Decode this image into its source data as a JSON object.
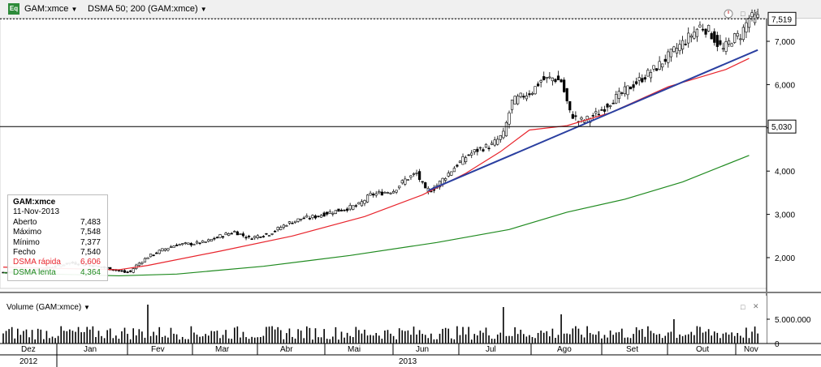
{
  "header": {
    "badge": "Eq",
    "symbol": "GAM:xmce",
    "indicator": "DSMA 50; 200 (GAM:xmce)"
  },
  "price_labels": {
    "current": "7,519",
    "hline": "5,030"
  },
  "info_box": {
    "title": "GAM:xmce",
    "date": "11-Nov-2013",
    "rows": [
      {
        "label": "Aberto",
        "value": "7,483"
      },
      {
        "label": "Máximo",
        "value": "7,548"
      },
      {
        "label": "Mínimo",
        "value": "7,377"
      },
      {
        "label": "Fecho",
        "value": "7,540"
      },
      {
        "label": "DSMA rápida",
        "value": "6,606"
      },
      {
        "label": "DSMA lenta",
        "value": "4,364"
      }
    ]
  },
  "volume_panel": {
    "title": "Volume (GAM:xmce)"
  },
  "colors": {
    "up": "#ffffff",
    "down": "#000000",
    "fast_ma": "#e8242c",
    "slow_ma": "#1f8a1f",
    "trendline": "#2a3fa0"
  },
  "chart_data": [
    {
      "type": "candlestick",
      "title": "",
      "ylim": [
        1.35,
        7.55
      ],
      "yticks": [
        "2,000",
        "3,000",
        "4,000",
        "5,000",
        "6,000",
        "7,000"
      ],
      "ytick_values": [
        2,
        3,
        4,
        5,
        6,
        7
      ],
      "x_month_labels": [
        "Dez",
        "Jan",
        "Fev",
        "Mar",
        "Abr",
        "Mai",
        "Jun",
        "Jul",
        "Ago",
        "Set",
        "Out",
        "Nov"
      ],
      "x_year_labels": [
        "2012",
        "2013"
      ],
      "close_series": [
        [
          0,
          1.66
        ],
        [
          6,
          1.68
        ],
        [
          12,
          1.72
        ],
        [
          18,
          1.8
        ],
        [
          23,
          1.88
        ],
        [
          28,
          1.85
        ],
        [
          34,
          1.78
        ],
        [
          40,
          1.7
        ],
        [
          42,
          1.66
        ],
        [
          44,
          1.68
        ],
        [
          46,
          1.82
        ],
        [
          50,
          2.02
        ],
        [
          55,
          2.18
        ],
        [
          60,
          2.3
        ],
        [
          65,
          2.32
        ],
        [
          70,
          2.36
        ],
        [
          75,
          2.5
        ],
        [
          80,
          2.6
        ],
        [
          85,
          2.45
        ],
        [
          88,
          2.5
        ],
        [
          92,
          2.55
        ],
        [
          98,
          2.78
        ],
        [
          103,
          2.9
        ],
        [
          108,
          2.95
        ],
        [
          113,
          3.05
        ],
        [
          118,
          3.12
        ],
        [
          123,
          3.22
        ],
        [
          127,
          3.45
        ],
        [
          131,
          3.5
        ],
        [
          135,
          3.55
        ],
        [
          139,
          3.8
        ],
        [
          143,
          3.95
        ],
        [
          146,
          3.55
        ],
        [
          149,
          3.6
        ],
        [
          153,
          3.88
        ],
        [
          157,
          4.15
        ],
        [
          161,
          4.38
        ],
        [
          165,
          4.52
        ],
        [
          169,
          4.6
        ],
        [
          173,
          4.85
        ],
        [
          176,
          5.6
        ],
        [
          180,
          5.75
        ],
        [
          183,
          5.85
        ],
        [
          186,
          6.1
        ],
        [
          190,
          6.15
        ],
        [
          193,
          6.08
        ],
        [
          196,
          5.35
        ],
        [
          199,
          5.15
        ],
        [
          202,
          5.2
        ],
        [
          206,
          5.35
        ],
        [
          210,
          5.6
        ],
        [
          214,
          5.8
        ],
        [
          218,
          6.0
        ],
        [
          222,
          6.2
        ],
        [
          226,
          6.4
        ],
        [
          230,
          6.65
        ],
        [
          234,
          6.9
        ],
        [
          238,
          7.15
        ],
        [
          241,
          7.35
        ],
        [
          244,
          7.25
        ],
        [
          247,
          6.95
        ],
        [
          249,
          6.8
        ],
        [
          252,
          7.05
        ],
        [
          255,
          7.15
        ],
        [
          258,
          7.54
        ]
      ],
      "dsma_rapida": [
        [
          0,
          1.78
        ],
        [
          40,
          1.72
        ],
        [
          50,
          1.82
        ],
        [
          75,
          2.15
        ],
        [
          100,
          2.5
        ],
        [
          125,
          2.95
        ],
        [
          145,
          3.45
        ],
        [
          160,
          3.95
        ],
        [
          172,
          4.45
        ],
        [
          182,
          4.95
        ],
        [
          195,
          5.05
        ],
        [
          210,
          5.35
        ],
        [
          230,
          5.95
        ],
        [
          250,
          6.35
        ],
        [
          258,
          6.606
        ]
      ],
      "dsma_lenta": [
        [
          0,
          1.65
        ],
        [
          40,
          1.58
        ],
        [
          60,
          1.62
        ],
        [
          90,
          1.8
        ],
        [
          120,
          2.05
        ],
        [
          150,
          2.35
        ],
        [
          175,
          2.65
        ],
        [
          195,
          3.05
        ],
        [
          215,
          3.35
        ],
        [
          235,
          3.75
        ],
        [
          258,
          4.364
        ]
      ],
      "trendline": [
        [
          147,
          3.55
        ],
        [
          261,
          6.8
        ]
      ],
      "hline": 5.03,
      "current_line": 7.519
    },
    {
      "type": "bar",
      "title": "Volume (GAM:xmce)",
      "ylim": [
        0,
        8000000
      ],
      "yticks": [
        "0",
        "5.000.000"
      ],
      "ytick_values": [
        0,
        5000000
      ],
      "peaks": [
        [
          50,
          8000000
        ],
        [
          173,
          7500000
        ],
        [
          193,
          6000000
        ],
        [
          232,
          5000000
        ]
      ],
      "avg": 2000000
    }
  ]
}
